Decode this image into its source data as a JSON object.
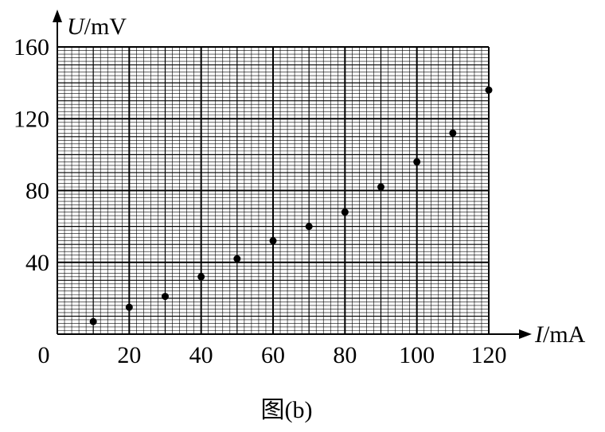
{
  "caption": "图(b)",
  "chart_data": {
    "type": "scatter",
    "title": "",
    "xlabel": {
      "symbol": "I",
      "unit": "/mA"
    },
    "ylabel": {
      "symbol": "U",
      "unit": "/mV"
    },
    "xlim": [
      0,
      120
    ],
    "ylim": [
      0,
      160
    ],
    "x_ticks": [
      0,
      20,
      40,
      60,
      80,
      100,
      120
    ],
    "y_ticks": [
      40,
      80,
      120,
      160
    ],
    "x_tick_labels": [
      "0",
      "20",
      "40",
      "60",
      "80",
      "100",
      "120"
    ],
    "y_tick_labels": [
      "40",
      "80",
      "120",
      "160"
    ],
    "grid": {
      "minor_step": 2,
      "medium_step": 10,
      "major_step": 20,
      "y_minor_step": 2,
      "y_medium_step": 10,
      "y_major_step": 40
    },
    "x": [
      10,
      20,
      30,
      40,
      50,
      60,
      70,
      80,
      90,
      100,
      110,
      120
    ],
    "y": [
      7,
      15,
      21,
      32,
      42,
      52,
      60,
      68,
      82,
      96,
      112,
      136
    ]
  }
}
